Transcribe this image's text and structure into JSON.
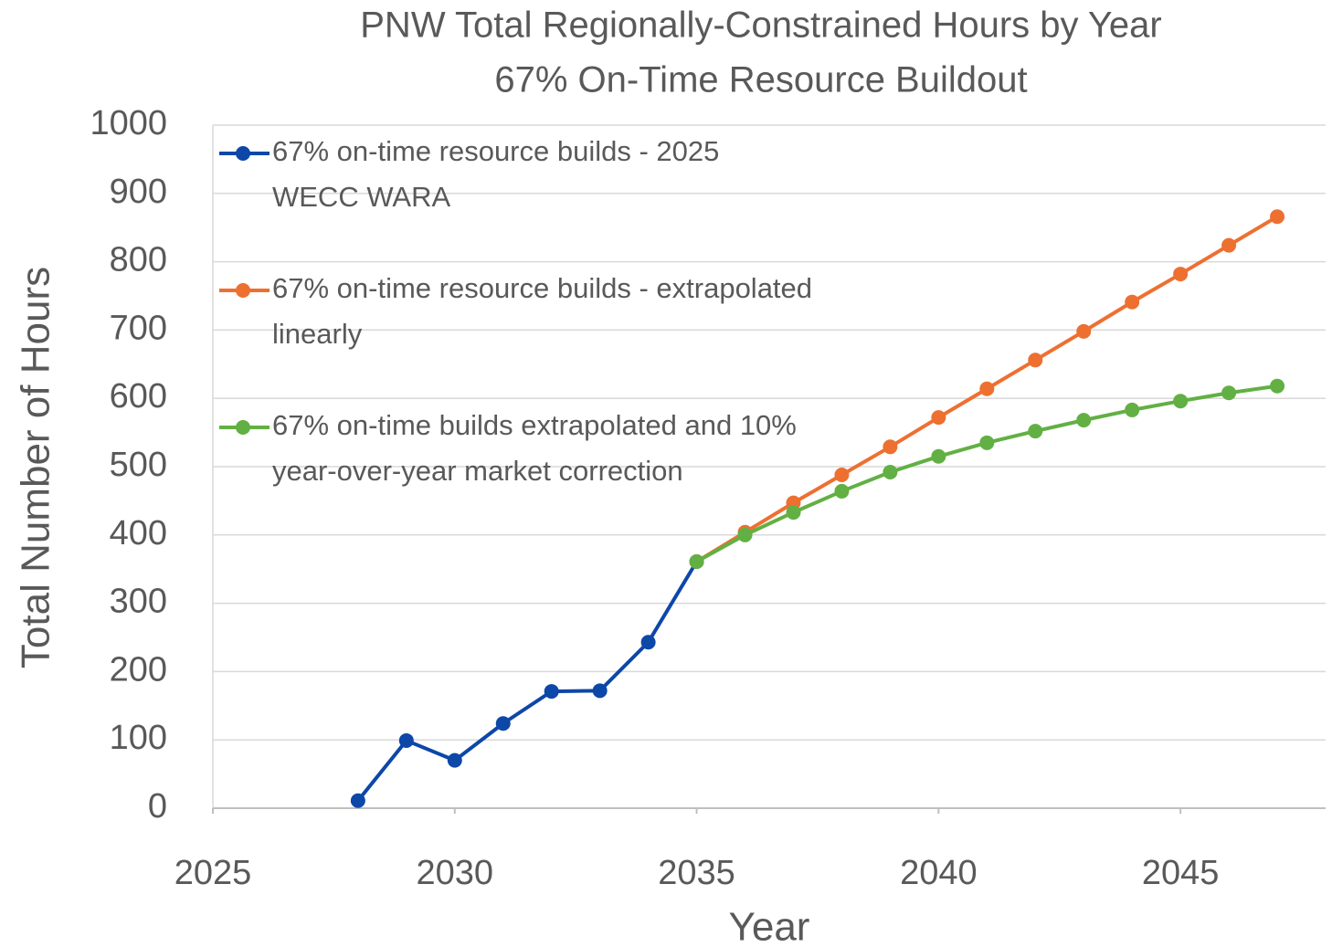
{
  "chart_data": {
    "type": "line",
    "title": "PNW Total Regionally-Constrained Hours by Year",
    "subtitle": "67% On-Time Resource Buildout",
    "x_label": "Year",
    "y_label": "Total Number of Hours",
    "xlim": [
      2025,
      2048
    ],
    "xticks": [
      2025,
      2030,
      2035,
      2040,
      2045
    ],
    "ylim": [
      0,
      1000
    ],
    "yticks": [
      0,
      100,
      200,
      300,
      400,
      500,
      600,
      700,
      800,
      900,
      1000
    ],
    "grid": true,
    "legend": "upper left",
    "series": [
      {
        "name": "67% on-time resource builds - 2025 WECC WARA",
        "color": "#0d47a8",
        "x": [
          2028,
          2029,
          2030,
          2031,
          2032,
          2033,
          2034,
          2035
        ],
        "values": [
          11,
          99,
          70,
          124,
          171,
          172,
          243,
          361
        ]
      },
      {
        "name": "67% on-time resource builds - extrapolated linearly",
        "color": "#ed7031",
        "x": [
          2035,
          2036,
          2037,
          2038,
          2039,
          2040,
          2041,
          2042,
          2043,
          2044,
          2045,
          2046,
          2047
        ],
        "values": [
          361,
          404,
          447,
          488,
          529,
          572,
          614,
          656,
          698,
          741,
          782,
          824,
          866
        ]
      },
      {
        "name": "67% on-time builds extrapolated and 10% year-over-year market correction",
        "color": "#62b043",
        "x": [
          2035,
          2036,
          2037,
          2038,
          2039,
          2040,
          2041,
          2042,
          2043,
          2044,
          2045,
          2046,
          2047
        ],
        "values": [
          361,
          400,
          433,
          464,
          492,
          515,
          535,
          552,
          568,
          583,
          596,
          608,
          618
        ]
      }
    ]
  }
}
